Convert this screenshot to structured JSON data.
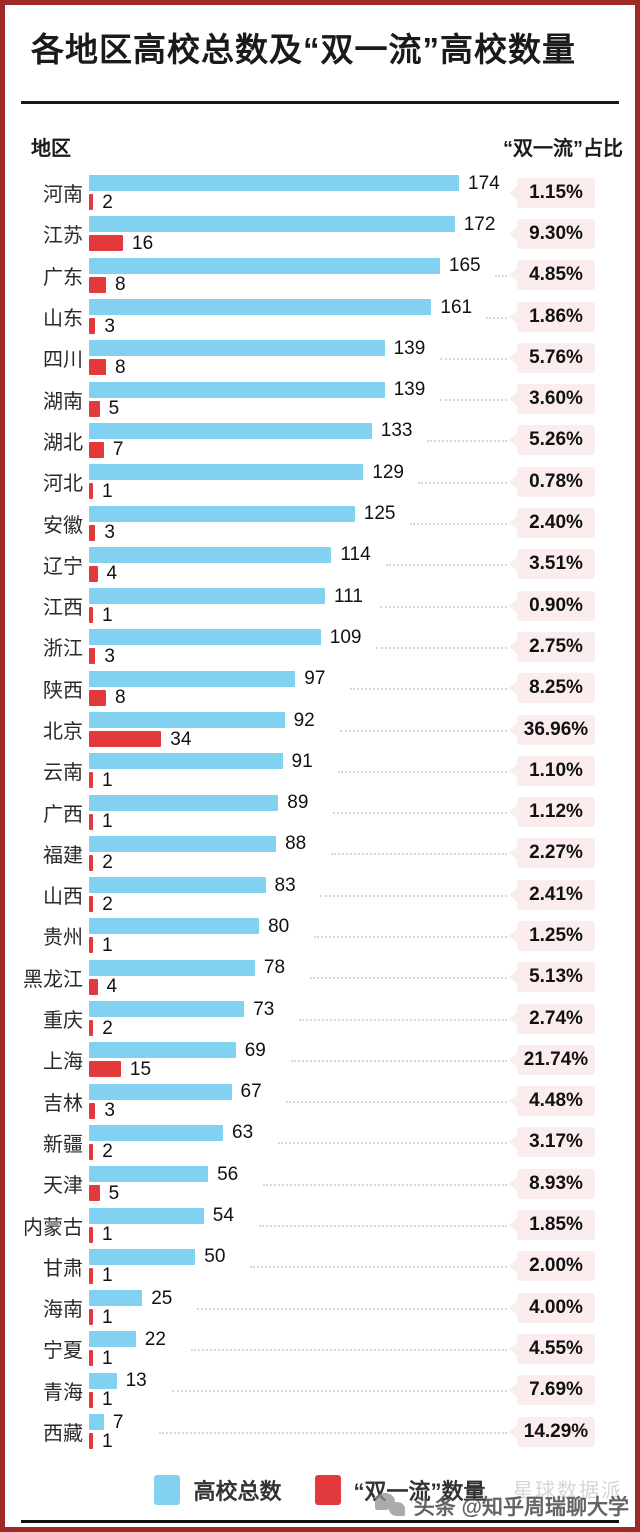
{
  "header": {
    "title": "各地区高校总数及“双一流”高校数量",
    "left_label": "地区",
    "right_label": "“双一流”占比"
  },
  "chart_data": {
    "type": "bar",
    "orientation": "horizontal",
    "title": "各地区高校总数及“双一流”高校数量",
    "max_value": 174,
    "series": [
      {
        "name": "高校总数",
        "color": "#82d1f1"
      },
      {
        "name": "“双一流”数量",
        "color": "#e23a3c"
      }
    ],
    "rows": [
      {
        "region": "河南",
        "total": 174,
        "first_class": 2,
        "share": "1.15%"
      },
      {
        "region": "江苏",
        "total": 172,
        "first_class": 16,
        "share": "9.30%"
      },
      {
        "region": "广东",
        "total": 165,
        "first_class": 8,
        "share": "4.85%"
      },
      {
        "region": "山东",
        "total": 161,
        "first_class": 3,
        "share": "1.86%"
      },
      {
        "region": "四川",
        "total": 139,
        "first_class": 8,
        "share": "5.76%"
      },
      {
        "region": "湖南",
        "total": 139,
        "first_class": 5,
        "share": "3.60%"
      },
      {
        "region": "湖北",
        "total": 133,
        "first_class": 7,
        "share": "5.26%"
      },
      {
        "region": "河北",
        "total": 129,
        "first_class": 1,
        "share": "0.78%"
      },
      {
        "region": "安徽",
        "total": 125,
        "first_class": 3,
        "share": "2.40%"
      },
      {
        "region": "辽宁",
        "total": 114,
        "first_class": 4,
        "share": "3.51%"
      },
      {
        "region": "江西",
        "total": 111,
        "first_class": 1,
        "share": "0.90%"
      },
      {
        "region": "浙江",
        "total": 109,
        "first_class": 3,
        "share": "2.75%"
      },
      {
        "region": "陕西",
        "total": 97,
        "first_class": 8,
        "share": "8.25%"
      },
      {
        "region": "北京",
        "total": 92,
        "first_class": 34,
        "share": "36.96%"
      },
      {
        "region": "云南",
        "total": 91,
        "first_class": 1,
        "share": "1.10%"
      },
      {
        "region": "广西",
        "total": 89,
        "first_class": 1,
        "share": "1.12%"
      },
      {
        "region": "福建",
        "total": 88,
        "first_class": 2,
        "share": "2.27%"
      },
      {
        "region": "山西",
        "total": 83,
        "first_class": 2,
        "share": "2.41%"
      },
      {
        "region": "贵州",
        "total": 80,
        "first_class": 1,
        "share": "1.25%"
      },
      {
        "region": "黑龙江",
        "total": 78,
        "first_class": 4,
        "share": "5.13%"
      },
      {
        "region": "重庆",
        "total": 73,
        "first_class": 2,
        "share": "2.74%"
      },
      {
        "region": "上海",
        "total": 69,
        "first_class": 15,
        "share": "21.74%"
      },
      {
        "region": "吉林",
        "total": 67,
        "first_class": 3,
        "share": "4.48%"
      },
      {
        "region": "新疆",
        "total": 63,
        "first_class": 2,
        "share": "3.17%"
      },
      {
        "region": "天津",
        "total": 56,
        "first_class": 5,
        "share": "8.93%"
      },
      {
        "region": "内蒙古",
        "total": 54,
        "first_class": 1,
        "share": "1.85%"
      },
      {
        "region": "甘肃",
        "total": 50,
        "first_class": 1,
        "share": "2.00%"
      },
      {
        "region": "海南",
        "total": 25,
        "first_class": 1,
        "share": "4.00%"
      },
      {
        "region": "宁夏",
        "total": 22,
        "first_class": 1,
        "share": "4.55%"
      },
      {
        "region": "青海",
        "total": 13,
        "first_class": 1,
        "share": "7.69%"
      },
      {
        "region": "西藏",
        "total": 7,
        "first_class": 1,
        "share": "14.29%"
      }
    ]
  },
  "legend": {
    "total_label": "高校总数",
    "first_class_label": "“双一流”数量"
  },
  "watermark": {
    "faint": "星球数据派",
    "text": "头条 @知乎周瑞聊大学"
  },
  "colors": {
    "frame_border": "#9c2b27",
    "total_bar": "#82d1f1",
    "first_class_bar": "#e23a3c",
    "badge_bg": "#fbeced",
    "leader_dots": "#d9d9d9",
    "text": "#1a1a1a"
  }
}
